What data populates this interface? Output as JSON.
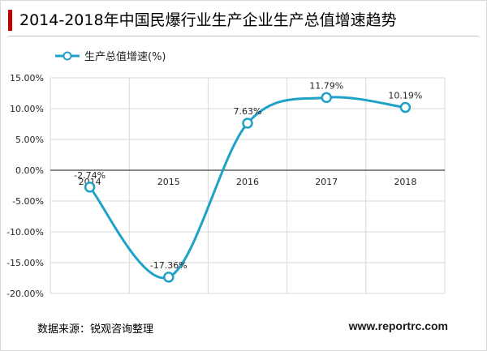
{
  "title": "2014-2018年中国民爆行业生产企业生产总值增速趋势",
  "source": "数据来源：锐观咨询整理",
  "website": "www.reportrc.com",
  "colors": {
    "line": "#1fa1c8",
    "title_accent": "#c00000",
    "grid": "#d9d9d9",
    "axis": "#404040"
  },
  "chart_data": {
    "type": "line",
    "title": "2014-2018年中国民爆行业生产企业生产总值增速趋势",
    "categories": [
      "2014",
      "2015",
      "2016",
      "2017",
      "2018"
    ],
    "series": [
      {
        "name": "生产总值增速(%)",
        "values": [
          -2.74,
          -17.36,
          7.63,
          11.79,
          10.19
        ],
        "labels": [
          "-2.74%",
          "-17.36%",
          "7.63%",
          "11.79%",
          "10.19%"
        ]
      }
    ],
    "yticks": [
      15,
      10,
      5,
      0,
      -5,
      -10,
      -15,
      -20
    ],
    "ytick_labels": [
      "15.00%",
      "10.00%",
      "5.00%",
      "0.00%",
      "-5.00%",
      "-10.00%",
      "-15.00%",
      "-20.00%"
    ],
    "ylim": [
      -20,
      15
    ],
    "grid": true,
    "legend": "top-left",
    "smooth": true
  }
}
